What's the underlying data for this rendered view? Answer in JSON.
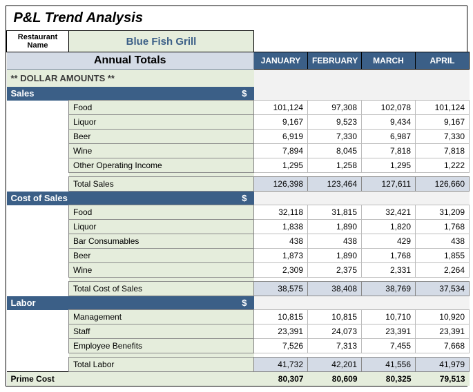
{
  "colors": {
    "header_blue": "#3b5f87",
    "light_green": "#e5eddc",
    "light_blue": "#d4dbe6",
    "grey_empty": "#f2f2f2",
    "border": "#000000"
  },
  "title": "P&L Trend Analysis",
  "restaurant_label": "Restaurant Name",
  "restaurant_name": "Blue Fish Grill",
  "annual_totals": "Annual Totals",
  "months": [
    "JANUARY",
    "FEBRUARY",
    "MARCH",
    "APRIL"
  ],
  "dollar_header": "** DOLLAR AMOUNTS **",
  "currency_symbol": "$",
  "sections": [
    {
      "name": "Sales",
      "rows": [
        {
          "label": "Food",
          "values": [
            "101,124",
            "97,308",
            "102,078",
            "101,124"
          ]
        },
        {
          "label": "Liquor",
          "values": [
            "9,167",
            "9,523",
            "9,434",
            "9,167"
          ]
        },
        {
          "label": "Beer",
          "values": [
            "6,919",
            "7,330",
            "6,987",
            "7,330"
          ]
        },
        {
          "label": "Wine",
          "values": [
            "7,894",
            "8,045",
            "7,818",
            "7,818"
          ]
        },
        {
          "label": "Other Operating Income",
          "values": [
            "1,295",
            "1,258",
            "1,295",
            "1,222"
          ]
        }
      ],
      "total": {
        "label": "Total Sales",
        "values": [
          "126,398",
          "123,464",
          "127,611",
          "126,660"
        ]
      }
    },
    {
      "name": "Cost of Sales",
      "rows": [
        {
          "label": "Food",
          "values": [
            "32,118",
            "31,815",
            "32,421",
            "31,209"
          ]
        },
        {
          "label": "Liquor",
          "values": [
            "1,838",
            "1,890",
            "1,820",
            "1,768"
          ]
        },
        {
          "label": "Bar Consumables",
          "values": [
            "438",
            "438",
            "429",
            "438"
          ]
        },
        {
          "label": "Beer",
          "values": [
            "1,873",
            "1,890",
            "1,768",
            "1,855"
          ]
        },
        {
          "label": "Wine",
          "values": [
            "2,309",
            "2,375",
            "2,331",
            "2,264"
          ]
        }
      ],
      "total": {
        "label": "Total Cost of Sales",
        "values": [
          "38,575",
          "38,408",
          "38,769",
          "37,534"
        ]
      }
    },
    {
      "name": "Labor",
      "rows": [
        {
          "label": "Management",
          "values": [
            "10,815",
            "10,815",
            "10,710",
            "10,920"
          ]
        },
        {
          "label": "Staff",
          "values": [
            "23,391",
            "24,073",
            "23,391",
            "23,391"
          ]
        },
        {
          "label": "Employee Benefits",
          "values": [
            "7,526",
            "7,313",
            "7,455",
            "7,668"
          ]
        }
      ],
      "total": {
        "label": "Total Labor",
        "values": [
          "41,732",
          "42,201",
          "41,556",
          "41,979"
        ]
      }
    }
  ],
  "prime": {
    "label": "Prime Cost",
    "values": [
      "80,307",
      "80,609",
      "80,325",
      "79,513"
    ]
  }
}
